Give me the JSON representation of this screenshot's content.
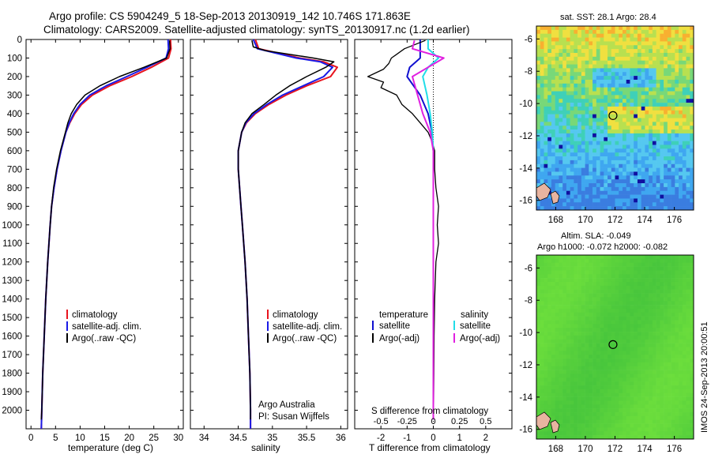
{
  "title": {
    "line1": "Argo profile: CS 5904249_5 18-Sep-2013 20130919_142 10.746S 171.863E",
    "line2": "Climatology: CARS2009. Satellite-adjusted climatology: synTS_20130917.nc (1.2d earlier)"
  },
  "colors": {
    "climatology": "#e8141e",
    "satellite": "#1a1ae6",
    "argo": "#000000",
    "t_sat": "#1010d0",
    "s_sat": "#22dde8",
    "s_argo": "#e020e0"
  },
  "depth_ticks": [
    0,
    100,
    200,
    300,
    400,
    500,
    600,
    700,
    800,
    900,
    1000,
    1100,
    1200,
    1300,
    1400,
    1500,
    1600,
    1700,
    1800,
    1900,
    2000
  ],
  "temp_panel": {
    "xlabel": "temperature (deg C)",
    "ticks": [
      "0",
      "5",
      "10",
      "15",
      "20",
      "25",
      "30"
    ],
    "legend": [
      "climatology",
      "satellite-adj. clim.",
      "Argo(..raw -QC)"
    ]
  },
  "sal_panel": {
    "xlabel": "salinity",
    "ticks": [
      "34",
      "34.5",
      "35",
      "35.5",
      "36"
    ],
    "legend": [
      "climatology",
      "satellite-adj. clim.",
      "Argo(..raw -QC)"
    ],
    "credit1": "Argo Australia",
    "credit2": "PI: Susan Wijffels"
  },
  "diff_panel": {
    "legend_temp_head": "temperature",
    "legend_sal_head": "salinity",
    "legend_t_sat": "satellite",
    "legend_t_argo": "Argo(-adj)",
    "legend_s_sat": "satellite",
    "legend_s_argo": "Argo(-adj)",
    "s_label": "S difference from climatology",
    "s_ticks": [
      "-0.5",
      "-0.25",
      "0",
      "0.25",
      "0.5"
    ],
    "t_ticks": [
      "-2",
      "-1",
      "0",
      "1",
      "2"
    ],
    "xlabel": "T difference from climatology"
  },
  "sst_map": {
    "title": "sat. SST: 28.1  Argo: 28.4",
    "lat_ticks": [
      "-6",
      "-8",
      "-10",
      "-12",
      "-14",
      "-16"
    ],
    "lon_ticks": [
      "168",
      "170",
      "172",
      "174",
      "176"
    ]
  },
  "sla_map": {
    "title1": "Altim. SLA: -0.049",
    "title2": "Argo h1000: -0.072 h2000: -0.082",
    "lat_ticks": [
      "-6",
      "-8",
      "-10",
      "-12",
      "-14",
      "-16"
    ],
    "lon_ticks": [
      "168",
      "170",
      "172",
      "174",
      "176"
    ]
  },
  "side_stamp": "IMOS 24-Sep-2013 20:00:51",
  "chart_data": [
    {
      "type": "line",
      "panel": "temperature",
      "xlabel": "temperature (deg C)",
      "ylim": [
        2100,
        0
      ],
      "xlim": [
        -1,
        31
      ],
      "series": [
        {
          "name": "climatology",
          "depth": [
            0,
            50,
            100,
            150,
            200,
            250,
            300,
            350,
            400,
            450,
            500,
            600,
            700,
            800,
            900,
            1000,
            1200,
            1400,
            1600,
            1800,
            2000,
            2100
          ],
          "values": [
            28.4,
            28.5,
            28.0,
            24.5,
            20.5,
            16.0,
            12.5,
            10.3,
            8.9,
            7.9,
            7.1,
            6.1,
            5.3,
            4.7,
            4.2,
            3.9,
            3.4,
            3.0,
            2.7,
            2.4,
            2.2,
            2.1
          ]
        },
        {
          "name": "satellite-adj. clim.",
          "depth": [
            0,
            50,
            100,
            150,
            200,
            250,
            300,
            350,
            400,
            450,
            500,
            600,
            700,
            800,
            900,
            1000,
            1200,
            1400,
            1600,
            1800,
            2000,
            2100
          ],
          "values": [
            27.9,
            28.0,
            27.5,
            23.6,
            19.5,
            15.3,
            12.0,
            10.0,
            8.7,
            7.8,
            7.1,
            6.1,
            5.3,
            4.7,
            4.2,
            3.9,
            3.4,
            3.0,
            2.7,
            2.4,
            2.2,
            2.1
          ]
        },
        {
          "name": "Argo(..raw -QC)",
          "depth": [
            5,
            50,
            100,
            150,
            200,
            250,
            300,
            350,
            400,
            450,
            500,
            600,
            700,
            800,
            900,
            1000,
            1200,
            1400,
            1600,
            1800,
            2000,
            2050
          ],
          "values": [
            28.2,
            28.3,
            27.6,
            23.0,
            18.0,
            14.0,
            11.0,
            9.3,
            8.2,
            7.5,
            7.0,
            6.0,
            5.2,
            4.6,
            4.2,
            3.9,
            3.4,
            3.0,
            2.7,
            2.4,
            2.2,
            2.1
          ]
        }
      ]
    },
    {
      "type": "line",
      "panel": "salinity",
      "xlabel": "salinity",
      "ylim": [
        2100,
        0
      ],
      "xlim": [
        33.8,
        36.1
      ],
      "series": [
        {
          "name": "climatology",
          "depth": [
            0,
            50,
            100,
            120,
            150,
            200,
            250,
            300,
            350,
            400,
            450,
            500,
            600,
            700,
            800,
            900,
            1000,
            1200,
            1400,
            1600,
            1800,
            2000,
            2100
          ],
          "values": [
            34.75,
            34.8,
            35.4,
            35.75,
            35.95,
            35.85,
            35.5,
            35.2,
            34.95,
            34.75,
            34.62,
            34.55,
            34.5,
            34.5,
            34.52,
            34.54,
            34.56,
            34.6,
            34.63,
            34.65,
            34.67,
            34.68,
            34.68
          ]
        },
        {
          "name": "satellite-adj. clim.",
          "depth": [
            0,
            50,
            100,
            120,
            150,
            200,
            250,
            300,
            350,
            400,
            450,
            500,
            600,
            700,
            800,
            900,
            1000,
            1200,
            1400,
            1600,
            1800,
            2000,
            2100
          ],
          "values": [
            34.72,
            34.78,
            35.35,
            35.7,
            35.88,
            35.75,
            35.45,
            35.15,
            34.92,
            34.73,
            34.61,
            34.55,
            34.5,
            34.5,
            34.52,
            34.54,
            34.56,
            34.6,
            34.63,
            34.65,
            34.67,
            34.68,
            34.68
          ]
        },
        {
          "name": "Argo(..raw -QC)",
          "depth": [
            5,
            40,
            60,
            100,
            120,
            150,
            200,
            250,
            300,
            350,
            400,
            450,
            500,
            600,
            700,
            800,
            900,
            1000,
            1200,
            1400,
            1600,
            1800,
            2000,
            2050
          ],
          "values": [
            34.7,
            34.72,
            34.9,
            35.6,
            35.9,
            35.78,
            35.5,
            35.25,
            35.05,
            34.88,
            34.7,
            34.6,
            34.55,
            34.5,
            34.5,
            34.52,
            34.54,
            34.56,
            34.6,
            34.63,
            34.65,
            34.67,
            34.68,
            34.68
          ]
        }
      ]
    },
    {
      "type": "line",
      "panel": "difference",
      "xlabel": "T difference from climatology",
      "ylim": [
        2100,
        0
      ],
      "xlim_T": [
        -3,
        3
      ],
      "xlim_S": [
        -0.75,
        0.75
      ],
      "series": [
        {
          "name": "temperature satellite",
          "depth": [
            0,
            50,
            100,
            150,
            200,
            300,
            400,
            500,
            600,
            2050
          ],
          "values": [
            -0.5,
            -0.5,
            -0.5,
            -0.9,
            -1.0,
            -0.5,
            -0.2,
            -0.05,
            0,
            0
          ]
        },
        {
          "name": "temperature Argo(-adj)",
          "depth": [
            5,
            50,
            80,
            100,
            130,
            160,
            200,
            230,
            260,
            300,
            350,
            400,
            450,
            500,
            550,
            600,
            700,
            800,
            900,
            1000,
            1100,
            1200,
            1400,
            1600,
            1800,
            2000,
            2050
          ],
          "values": [
            -0.3,
            -1.1,
            -1.4,
            -1.6,
            -1.7,
            -1.9,
            -2.5,
            -1.9,
            -2.0,
            -1.4,
            -1.2,
            -0.8,
            -0.5,
            -0.2,
            -0.05,
            0.05,
            0.05,
            0.1,
            0.2,
            0.15,
            0.2,
            0.1,
            0.05,
            0.03,
            0.02,
            0.01,
            0
          ]
        },
        {
          "name": "salinity satellite",
          "depth": [
            0,
            50,
            100,
            150,
            200,
            300,
            400,
            500,
            600,
            2050
          ],
          "values": [
            -0.05,
            -0.05,
            0.05,
            -0.05,
            -0.1,
            -0.06,
            -0.03,
            -0.01,
            0,
            0
          ]
        },
        {
          "name": "salinity Argo(-adj)",
          "depth": [
            5,
            50,
            100,
            150,
            200,
            300,
            400,
            500,
            600,
            2050
          ],
          "values": [
            -0.18,
            -0.2,
            0.1,
            -0.05,
            -0.2,
            -0.15,
            -0.1,
            -0.03,
            0,
            0
          ]
        }
      ]
    },
    {
      "type": "heatmap",
      "panel": "sat. SST",
      "title": "sat. SST: 28.1  Argo: 28.4",
      "xlim": [
        166.7,
        177.3
      ],
      "ylim": [
        -16.6,
        -5.2
      ],
      "argo_position": {
        "lon": 171.863,
        "lat": -10.746
      }
    },
    {
      "type": "heatmap",
      "panel": "Altim. SLA",
      "title": "Altim. SLA: -0.049",
      "xlim": [
        166.7,
        177.3
      ],
      "ylim": [
        -16.6,
        -5.2
      ],
      "argo_position": {
        "lon": 171.863,
        "lat": -10.746
      }
    }
  ]
}
